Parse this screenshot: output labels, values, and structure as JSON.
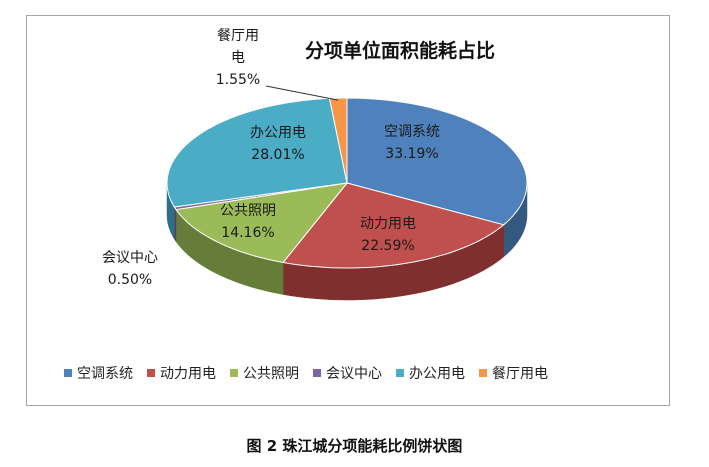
{
  "chart_data": {
    "type": "pie",
    "title": "分项单位面积能耗占比",
    "slices": [
      {
        "label": "空调系统",
        "label_lines": [
          "空调系统"
        ],
        "value": 33.19,
        "value_text": "33.19%",
        "color": "#4f81bd",
        "dark": "#35587f"
      },
      {
        "label": "动力用电",
        "label_lines": [
          "动力用电"
        ],
        "value": 22.59,
        "value_text": "22.59%",
        "color": "#c0504d",
        "dark": "#7f302e"
      },
      {
        "label": "公共照明",
        "label_lines": [
          "公共照明"
        ],
        "value": 14.16,
        "value_text": "14.16%",
        "color": "#9bbb59",
        "dark": "#667c39"
      },
      {
        "label": "会议中心",
        "label_lines": [
          "会议中心"
        ],
        "value": 0.5,
        "value_text": "0.50%",
        "color": "#8064a2",
        "dark": "#54416b"
      },
      {
        "label": "办公用电",
        "label_lines": [
          "办公用电"
        ],
        "value": 28.01,
        "value_text": "28.01%",
        "color": "#4bacc6",
        "dark": "#2f7184"
      },
      {
        "label": "餐厅用电",
        "label_lines": [
          "餐厅用",
          "电"
        ],
        "value": 1.55,
        "value_text": "1.55%",
        "color": "#f79646",
        "dark": "#a8612a"
      }
    ],
    "legend_position": "bottom"
  },
  "caption": "图 2 珠江城分项能耗比例饼状图"
}
